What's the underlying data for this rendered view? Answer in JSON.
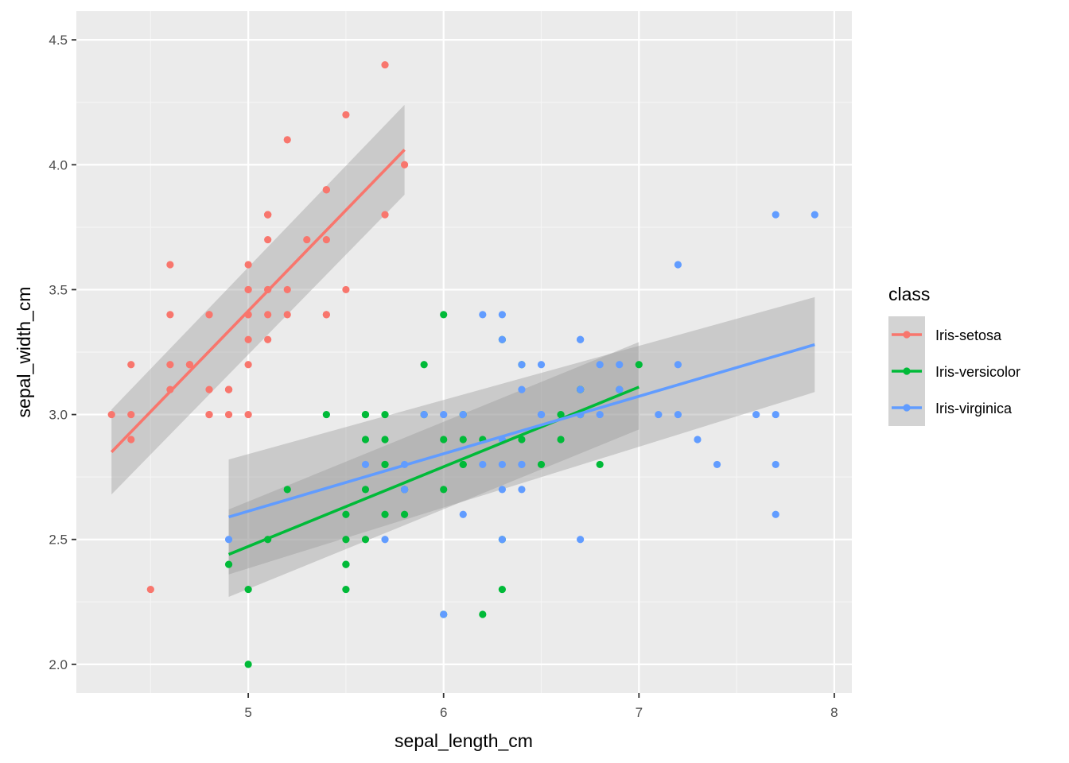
{
  "chart_data": {
    "type": "scatter",
    "xlabel": "sepal_length_cm",
    "ylabel": "sepal_width_cm",
    "xlim": [
      4.12,
      8.09
    ],
    "ylim": [
      1.885,
      4.615
    ],
    "x_ticks": [
      5,
      6,
      7,
      8
    ],
    "y_ticks": [
      2.0,
      2.5,
      3.0,
      3.5,
      4.0,
      4.5
    ],
    "x_tick_labels": [
      "5",
      "6",
      "7",
      "8"
    ],
    "y_tick_labels": [
      "2.0",
      "2.5",
      "3.0",
      "3.5",
      "4.0",
      "4.5"
    ],
    "grid": true,
    "legend": {
      "title": "class",
      "position": "right"
    },
    "series": [
      {
        "name": "Iris-setosa",
        "color": "#F8766D",
        "points": [
          [
            5.1,
            3.5
          ],
          [
            4.9,
            3.0
          ],
          [
            4.7,
            3.2
          ],
          [
            4.6,
            3.1
          ],
          [
            5.0,
            3.6
          ],
          [
            5.4,
            3.9
          ],
          [
            4.6,
            3.4
          ],
          [
            5.0,
            3.4
          ],
          [
            4.4,
            2.9
          ],
          [
            4.9,
            3.1
          ],
          [
            5.4,
            3.7
          ],
          [
            4.8,
            3.4
          ],
          [
            4.8,
            3.0
          ],
          [
            4.3,
            3.0
          ],
          [
            5.8,
            4.0
          ],
          [
            5.7,
            4.4
          ],
          [
            5.4,
            3.9
          ],
          [
            5.1,
            3.5
          ],
          [
            5.7,
            3.8
          ],
          [
            5.1,
            3.8
          ],
          [
            5.4,
            3.4
          ],
          [
            5.1,
            3.7
          ],
          [
            4.6,
            3.6
          ],
          [
            5.1,
            3.3
          ],
          [
            4.8,
            3.4
          ],
          [
            5.0,
            3.0
          ],
          [
            5.0,
            3.4
          ],
          [
            5.2,
            3.5
          ],
          [
            5.2,
            3.4
          ],
          [
            4.7,
            3.2
          ],
          [
            4.8,
            3.1
          ],
          [
            5.4,
            3.4
          ],
          [
            5.2,
            4.1
          ],
          [
            5.5,
            4.2
          ],
          [
            4.9,
            3.1
          ],
          [
            5.0,
            3.2
          ],
          [
            5.5,
            3.5
          ],
          [
            4.9,
            3.1
          ],
          [
            4.4,
            3.0
          ],
          [
            5.1,
            3.4
          ],
          [
            5.0,
            3.5
          ],
          [
            4.5,
            2.3
          ],
          [
            4.4,
            3.2
          ],
          [
            5.0,
            3.5
          ],
          [
            5.1,
            3.8
          ],
          [
            4.8,
            3.0
          ],
          [
            5.1,
            3.8
          ],
          [
            4.6,
            3.2
          ],
          [
            5.3,
            3.7
          ],
          [
            5.0,
            3.3
          ]
        ],
        "fit": {
          "x": [
            4.3,
            5.8
          ],
          "y": [
            2.85,
            4.06
          ],
          "band_upper": [
            3.02,
            4.24
          ],
          "band_lower": [
            2.68,
            3.88
          ]
        }
      },
      {
        "name": "Iris-versicolor",
        "color": "#00BA38",
        "points": [
          [
            7.0,
            3.2
          ],
          [
            6.4,
            3.2
          ],
          [
            6.9,
            3.1
          ],
          [
            5.5,
            2.3
          ],
          [
            6.5,
            2.8
          ],
          [
            5.7,
            2.8
          ],
          [
            6.3,
            3.3
          ],
          [
            4.9,
            2.4
          ],
          [
            6.6,
            2.9
          ],
          [
            5.2,
            2.7
          ],
          [
            5.0,
            2.0
          ],
          [
            5.9,
            3.0
          ],
          [
            6.0,
            2.2
          ],
          [
            6.1,
            2.9
          ],
          [
            5.6,
            2.9
          ],
          [
            6.7,
            3.1
          ],
          [
            5.6,
            3.0
          ],
          [
            5.8,
            2.7
          ],
          [
            6.2,
            2.2
          ],
          [
            5.6,
            2.5
          ],
          [
            5.9,
            3.2
          ],
          [
            6.1,
            2.8
          ],
          [
            6.3,
            2.5
          ],
          [
            6.1,
            2.8
          ],
          [
            6.4,
            2.9
          ],
          [
            6.6,
            3.0
          ],
          [
            6.8,
            2.8
          ],
          [
            6.7,
            3.0
          ],
          [
            6.0,
            2.9
          ],
          [
            5.7,
            2.6
          ],
          [
            5.5,
            2.4
          ],
          [
            5.5,
            2.4
          ],
          [
            5.8,
            2.7
          ],
          [
            6.0,
            2.7
          ],
          [
            5.4,
            3.0
          ],
          [
            6.0,
            3.4
          ],
          [
            6.7,
            3.1
          ],
          [
            6.3,
            2.3
          ],
          [
            5.6,
            3.0
          ],
          [
            5.5,
            2.5
          ],
          [
            5.5,
            2.6
          ],
          [
            6.1,
            3.0
          ],
          [
            5.8,
            2.6
          ],
          [
            5.0,
            2.3
          ],
          [
            5.6,
            2.7
          ],
          [
            5.7,
            3.0
          ],
          [
            5.7,
            2.9
          ],
          [
            6.2,
            2.9
          ],
          [
            5.1,
            2.5
          ],
          [
            5.7,
            2.8
          ]
        ],
        "fit": {
          "x": [
            4.9,
            7.0
          ],
          "y": [
            2.44,
            3.11
          ],
          "band_upper": [
            2.62,
            3.29
          ],
          "band_lower": [
            2.27,
            2.94
          ]
        }
      },
      {
        "name": "Iris-virginica",
        "color": "#619CFF",
        "points": [
          [
            6.3,
            3.3
          ],
          [
            5.8,
            2.7
          ],
          [
            7.1,
            3.0
          ],
          [
            6.3,
            2.9
          ],
          [
            6.5,
            3.0
          ],
          [
            7.6,
            3.0
          ],
          [
            4.9,
            2.5
          ],
          [
            7.3,
            2.9
          ],
          [
            6.7,
            2.5
          ],
          [
            7.2,
            3.6
          ],
          [
            6.5,
            3.2
          ],
          [
            6.4,
            2.7
          ],
          [
            6.8,
            3.0
          ],
          [
            5.7,
            2.5
          ],
          [
            5.8,
            2.8
          ],
          [
            6.4,
            3.2
          ],
          [
            6.5,
            3.0
          ],
          [
            7.7,
            3.8
          ],
          [
            7.7,
            2.6
          ],
          [
            6.0,
            2.2
          ],
          [
            6.9,
            3.2
          ],
          [
            5.6,
            2.8
          ],
          [
            7.7,
            2.8
          ],
          [
            6.3,
            2.7
          ],
          [
            6.7,
            3.3
          ],
          [
            7.2,
            3.2
          ],
          [
            6.2,
            2.8
          ],
          [
            6.1,
            3.0
          ],
          [
            6.4,
            2.8
          ],
          [
            7.2,
            3.0
          ],
          [
            7.4,
            2.8
          ],
          [
            7.9,
            3.8
          ],
          [
            6.4,
            2.8
          ],
          [
            6.3,
            2.8
          ],
          [
            6.1,
            2.6
          ],
          [
            7.7,
            3.0
          ],
          [
            6.3,
            3.4
          ],
          [
            6.4,
            3.1
          ],
          [
            6.0,
            3.0
          ],
          [
            6.9,
            3.1
          ],
          [
            6.7,
            3.1
          ],
          [
            6.9,
            3.1
          ],
          [
            5.8,
            2.7
          ],
          [
            6.8,
            3.2
          ],
          [
            6.7,
            3.3
          ],
          [
            6.7,
            3.0
          ],
          [
            6.3,
            2.5
          ],
          [
            6.5,
            3.0
          ],
          [
            6.2,
            3.4
          ],
          [
            5.9,
            3.0
          ]
        ],
        "fit": {
          "x": [
            4.9,
            7.9
          ],
          "y": [
            2.59,
            3.28
          ],
          "band_upper": [
            2.82,
            3.47
          ],
          "band_lower": [
            2.36,
            3.09
          ]
        }
      }
    ]
  }
}
